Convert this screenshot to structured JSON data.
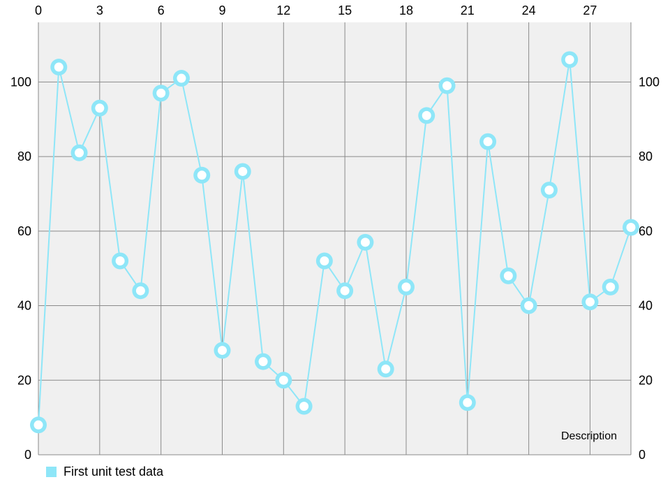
{
  "chart_data": {
    "type": "line",
    "title": "",
    "xlabel": "",
    "ylabel": "",
    "description": "Description",
    "x_axis_position": "top",
    "y_axis_position": "both",
    "x_ticks": [
      0,
      3,
      6,
      9,
      12,
      15,
      18,
      21,
      24,
      27
    ],
    "y_ticks": [
      0,
      20,
      40,
      60,
      80,
      100
    ],
    "xlim": [
      0,
      29
    ],
    "ylim": [
      0,
      116
    ],
    "grid": true,
    "legend_placement": "bottom-left",
    "series": [
      {
        "name": "First unit test data",
        "color": "#8ee6f8",
        "x": [
          0,
          1,
          2,
          3,
          4,
          5,
          6,
          7,
          8,
          9,
          10,
          11,
          12,
          13,
          14,
          15,
          16,
          17,
          18,
          19,
          20,
          21,
          22,
          23,
          24,
          25,
          26,
          27,
          28,
          29
        ],
        "values": [
          8,
          104,
          81,
          93,
          52,
          44,
          97,
          101,
          75,
          28,
          76,
          25,
          20,
          13,
          52,
          44,
          57,
          23,
          45,
          91,
          99,
          14,
          84,
          48,
          40,
          71,
          106,
          41,
          45,
          61
        ]
      }
    ]
  },
  "colors": {
    "plot_background": "#f0f0f0",
    "grid": "#8a8a8a",
    "line": "#8ee6f8",
    "marker_fill": "#ffffff"
  }
}
